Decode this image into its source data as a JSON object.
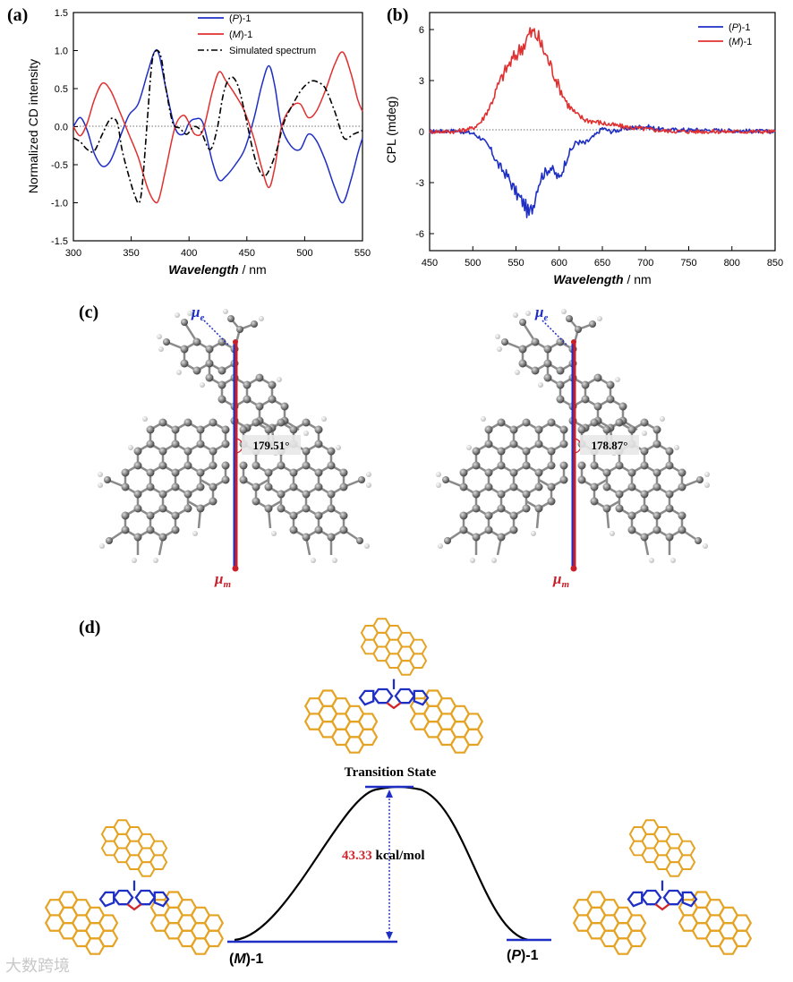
{
  "panel_labels": {
    "a": "(a)",
    "b": "(b)",
    "c": "(c)",
    "d": "(d)"
  },
  "colors": {
    "P": "#1f2fc4",
    "M": "#e03030",
    "sim": "#000000",
    "accent": "#d0282d",
    "molecule": "#e5a323",
    "core": "#1f2fc4"
  },
  "chart_data": [
    {
      "type": "line",
      "id": "cd",
      "xlabel_em": "Wavelength",
      "xlabel_unit": " / nm",
      "ylabel": "Normalized CD intensity",
      "xlim": [
        300,
        550
      ],
      "ylim": [
        -1.5,
        1.5
      ],
      "xticks": [
        300,
        350,
        400,
        450,
        500,
        550
      ],
      "yticks": [
        -1.5,
        -1.0,
        -0.5,
        0.0,
        0.5,
        1.0,
        1.5
      ],
      "ytick_labels": [
        "-1.5",
        "-1.0",
        "-0.5",
        "0.0",
        "0.5",
        "1.0",
        "1.5"
      ],
      "legend": [
        {
          "pre": "(",
          "em": "P",
          "post": ")-1",
          "style": "P"
        },
        {
          "pre": "(",
          "em": "M",
          "post": ")-1",
          "style": "M"
        },
        {
          "pre": "",
          "em": "",
          "post": "Simulated spectrum",
          "style": "sim"
        }
      ],
      "series": [
        {
          "name": "(P)-1",
          "style": "P",
          "x": [
            300,
            306,
            312,
            318,
            325,
            332,
            340,
            348,
            356,
            364,
            370,
            374,
            380,
            388,
            395,
            400,
            405,
            412,
            420,
            426,
            432,
            440,
            448,
            456,
            463,
            469,
            474,
            480,
            488,
            496,
            503,
            510,
            518,
            526,
            533,
            540,
            546,
            550
          ],
          "y": [
            0.0,
            0.12,
            -0.05,
            -0.35,
            -0.52,
            -0.45,
            -0.15,
            0.15,
            0.3,
            0.7,
            0.98,
            0.95,
            0.5,
            -0.02,
            -0.1,
            0.05,
            0.1,
            0.05,
            -0.45,
            -0.7,
            -0.65,
            -0.5,
            -0.3,
            0.1,
            0.55,
            0.8,
            0.55,
            0.0,
            -0.25,
            -0.3,
            -0.1,
            -0.18,
            -0.45,
            -0.8,
            -1.0,
            -0.7,
            -0.35,
            -0.15
          ]
        },
        {
          "name": "(M)-1",
          "style": "M",
          "x": [
            300,
            306,
            312,
            318,
            325,
            332,
            340,
            348,
            356,
            364,
            370,
            374,
            380,
            388,
            395,
            400,
            405,
            412,
            420,
            426,
            432,
            440,
            448,
            456,
            463,
            469,
            474,
            480,
            488,
            496,
            503,
            510,
            518,
            526,
            533,
            540,
            546,
            550
          ],
          "y": [
            0.0,
            -0.12,
            0.05,
            0.35,
            0.57,
            0.48,
            0.2,
            -0.1,
            -0.4,
            -0.8,
            -0.98,
            -0.95,
            -0.55,
            0.0,
            0.15,
            0.05,
            -0.1,
            -0.05,
            0.45,
            0.72,
            0.6,
            0.42,
            0.2,
            -0.15,
            -0.55,
            -0.8,
            -0.55,
            0.0,
            0.25,
            0.3,
            0.12,
            0.2,
            0.48,
            0.82,
            0.98,
            0.7,
            0.35,
            0.2
          ]
        },
        {
          "name": "Simulated spectrum",
          "style": "sim",
          "x": [
            300,
            306,
            312,
            318,
            325,
            332,
            338,
            342,
            348,
            353,
            357,
            360,
            364,
            368,
            372,
            376,
            380,
            386,
            392,
            398,
            404,
            410,
            418,
            424,
            430,
            436,
            442,
            448,
            455,
            460,
            465,
            470,
            476,
            482,
            490,
            498,
            506,
            512,
            518,
            526,
            534,
            542,
            550
          ],
          "y": [
            -0.15,
            -0.2,
            -0.3,
            -0.32,
            -0.1,
            0.1,
            0.05,
            -0.3,
            -0.65,
            -0.9,
            -1.0,
            -0.7,
            0.1,
            0.85,
            1.0,
            0.9,
            0.5,
            0.05,
            -0.02,
            -0.1,
            0.0,
            -0.05,
            -0.3,
            -0.05,
            0.45,
            0.65,
            0.55,
            0.2,
            -0.3,
            -0.55,
            -0.65,
            -0.55,
            -0.3,
            0.05,
            0.3,
            0.5,
            0.6,
            0.58,
            0.5,
            0.2,
            -0.15,
            -0.1,
            -0.05
          ]
        }
      ]
    },
    {
      "type": "line",
      "id": "cpl",
      "xlabel_em": "Wavelength",
      "xlabel_unit": " / nm",
      "ylabel": "CPL (mdeg)",
      "xlim": [
        450,
        850
      ],
      "ylim": [
        -7,
        7
      ],
      "xticks": [
        450,
        500,
        550,
        600,
        650,
        700,
        750,
        800,
        850
      ],
      "yticks": [
        -6,
        -3,
        0,
        3,
        6
      ],
      "ytick_labels": [
        "-6",
        "-3",
        "0",
        "3",
        "6"
      ],
      "legend": [
        {
          "pre": "(",
          "em": "P",
          "post": ")-1",
          "style": "P"
        },
        {
          "pre": "(",
          "em": "M",
          "post": ")-1",
          "style": "M"
        }
      ],
      "series": [
        {
          "name": "(P)-1",
          "style": "P",
          "x": [
            450,
            480,
            500,
            510,
            520,
            530,
            540,
            550,
            560,
            565,
            570,
            575,
            580,
            590,
            600,
            610,
            620,
            630,
            640,
            650,
            660,
            680,
            700,
            720,
            750,
            800,
            850
          ],
          "y": [
            0,
            0.05,
            -0.1,
            -0.4,
            -1.0,
            -2.0,
            -2.6,
            -3.6,
            -4.3,
            -4.9,
            -4.3,
            -3.2,
            -2.6,
            -2.1,
            -2.8,
            -1.4,
            -0.6,
            -0.7,
            -0.3,
            0.2,
            0.0,
            0.2,
            0.3,
            0.1,
            0.1,
            0.05,
            0.0
          ]
        },
        {
          "name": "(M)-1",
          "style": "M",
          "x": [
            450,
            480,
            500,
            510,
            520,
            530,
            540,
            550,
            560,
            565,
            570,
            575,
            580,
            590,
            600,
            610,
            620,
            630,
            640,
            650,
            660,
            680,
            700,
            720,
            750,
            800,
            850
          ],
          "y": [
            0,
            0.0,
            0.2,
            0.6,
            1.5,
            2.8,
            3.8,
            4.5,
            5.2,
            5.7,
            5.8,
            5.6,
            5.0,
            3.9,
            2.6,
            1.6,
            1.0,
            0.7,
            0.6,
            0.5,
            0.4,
            0.25,
            0.15,
            0.05,
            0.0,
            0.0,
            0.0
          ]
        }
      ]
    }
  ],
  "panel_c": {
    "mu_e": "μ",
    "mu_e_sub": "e",
    "mu_m": "μ",
    "mu_m_sub": "m",
    "angle_left": "179.51°",
    "angle_right": "178.87°"
  },
  "panel_d": {
    "ts_label": "Transition State",
    "barrier_value": "43.33",
    "barrier_unit": " kcal/mol",
    "left_pre": "(",
    "left_em": "M",
    "left_post": ")-1",
    "right_pre": "(",
    "right_em": "P",
    "right_post": ")-1"
  },
  "watermark": "大数跨境"
}
